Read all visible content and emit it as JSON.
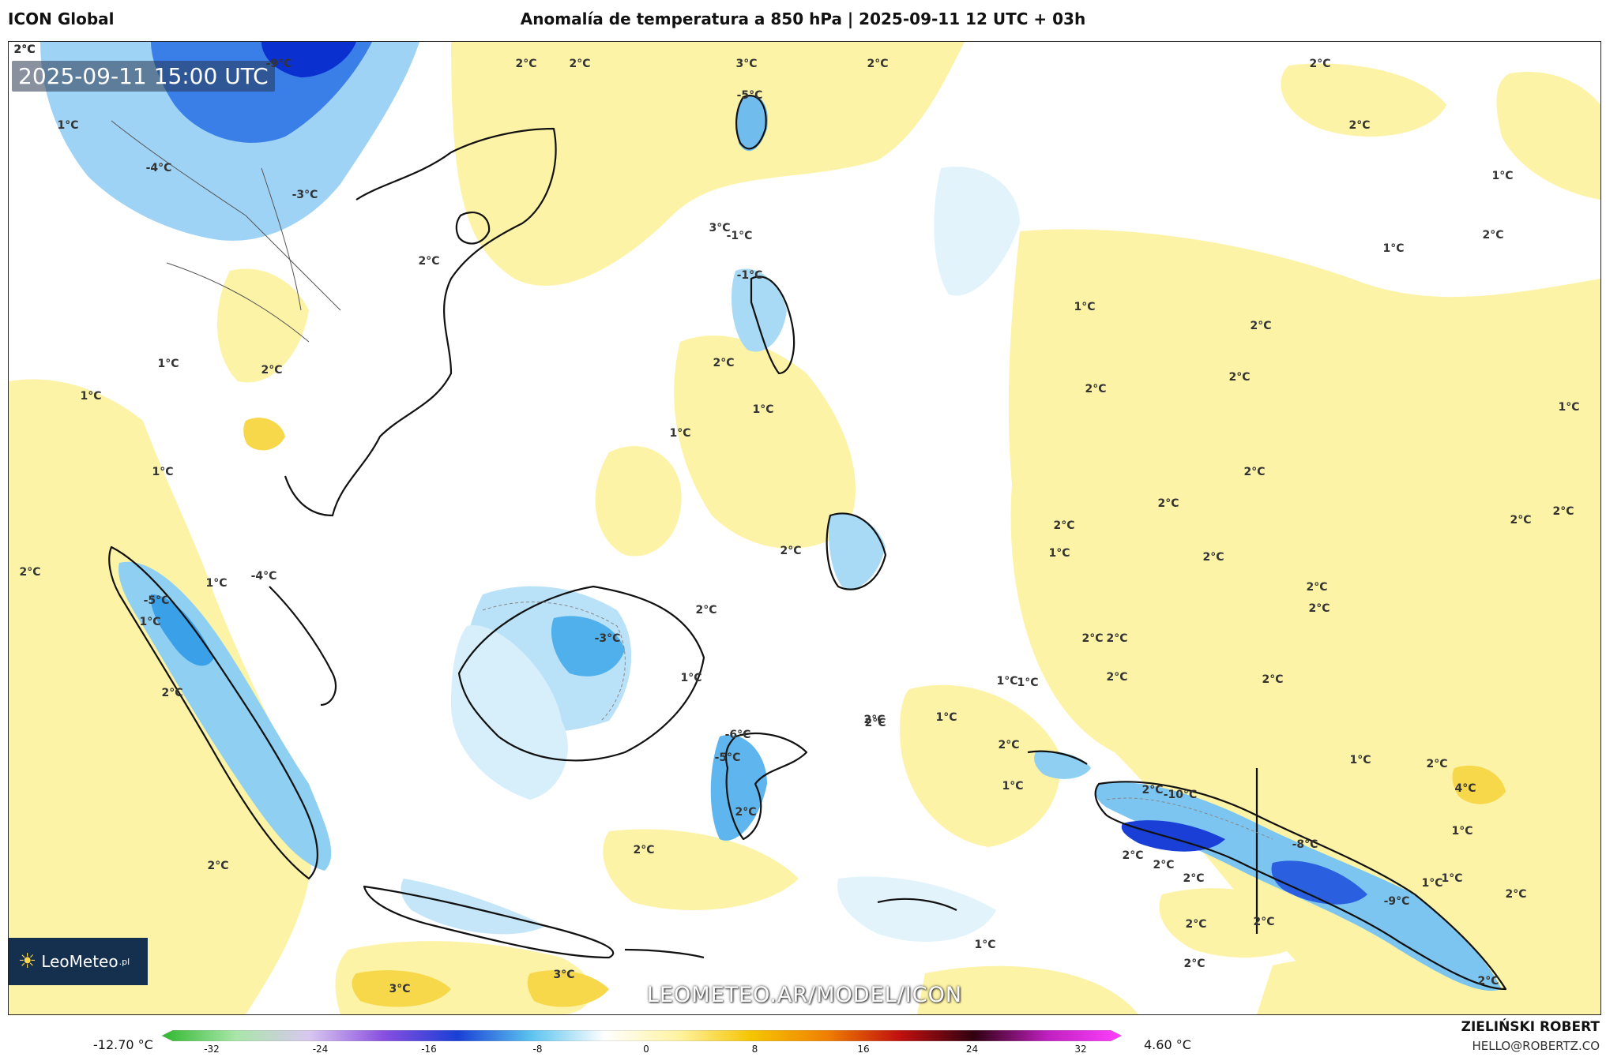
{
  "header": {
    "model": "ICON Global",
    "title": "Anomalía de temperatura a 850 hPa | 2025-09-11 12 UTC + 03h"
  },
  "map": {
    "valid_time": "2025-09-11 15:00 UTC",
    "watermark": "LEOMETEO.AR/MODEL/ICON",
    "logo_text": "LeoMeteo",
    "logo_suffix": ".pl",
    "labels": [
      {
        "text": "-9°C"
      },
      {
        "text": "2°C"
      },
      {
        "text": "2°C"
      },
      {
        "text": "3°C"
      },
      {
        "text": "-5°C"
      },
      {
        "text": "2°C"
      },
      {
        "text": "2°C"
      },
      {
        "text": "-1°C"
      },
      {
        "text": "-4°C"
      },
      {
        "text": "-3°C"
      },
      {
        "text": "2°C"
      },
      {
        "text": "1°C"
      },
      {
        "text": "1°C"
      },
      {
        "text": "1°C"
      },
      {
        "text": "2°C"
      },
      {
        "text": "2°C"
      },
      {
        "text": "3°C"
      },
      {
        "text": "2°C"
      },
      {
        "text": "-1°C"
      },
      {
        "text": "1°C"
      },
      {
        "text": "2°C"
      },
      {
        "text": "1°C"
      },
      {
        "text": "2°C"
      },
      {
        "text": "2°C"
      },
      {
        "text": "1°C"
      },
      {
        "text": "2°C"
      },
      {
        "text": "2°C"
      },
      {
        "text": "1°C"
      },
      {
        "text": "1°C"
      },
      {
        "text": "2°C"
      },
      {
        "text": "2°C"
      },
      {
        "text": "1°C"
      },
      {
        "text": "2°C"
      },
      {
        "text": "2°C"
      },
      {
        "text": "2°C"
      },
      {
        "text": "1°C"
      },
      {
        "text": "2°C"
      },
      {
        "text": "2°C"
      },
      {
        "text": "2°C"
      },
      {
        "text": "1°C"
      },
      {
        "text": "2°C"
      },
      {
        "text": "2°C"
      },
      {
        "text": "1°C"
      },
      {
        "text": "1°C"
      },
      {
        "text": "-4°C"
      },
      {
        "text": "-5°C"
      },
      {
        "text": "2°C"
      },
      {
        "text": "1°C"
      },
      {
        "text": "2°C"
      },
      {
        "text": "2°C"
      },
      {
        "text": "-3°C"
      },
      {
        "text": "2°C"
      },
      {
        "text": "1°C"
      },
      {
        "text": "1°C"
      },
      {
        "text": "2°C"
      },
      {
        "text": "2°C"
      },
      {
        "text": "1°C"
      },
      {
        "text": "2°C"
      },
      {
        "text": "2°C"
      },
      {
        "text": "2°C"
      },
      {
        "text": "2°C"
      },
      {
        "text": "2°C"
      },
      {
        "text": "-5°C"
      },
      {
        "text": "2°C"
      },
      {
        "text": "-6°C"
      },
      {
        "text": "1°C"
      },
      {
        "text": "2°C"
      },
      {
        "text": "2°C"
      },
      {
        "text": "2°C"
      },
      {
        "text": "2°C"
      },
      {
        "text": "1°C"
      },
      {
        "text": "2°C"
      },
      {
        "text": "1°C"
      },
      {
        "text": "2°C"
      },
      {
        "text": "-10°C"
      },
      {
        "text": "2°C"
      },
      {
        "text": "1°C"
      },
      {
        "text": "4°C"
      },
      {
        "text": "-8°C"
      },
      {
        "text": "2°C"
      },
      {
        "text": "1°C"
      },
      {
        "text": "-9°C"
      },
      {
        "text": "2°C"
      },
      {
        "text": "2°C"
      },
      {
        "text": "2°C"
      },
      {
        "text": "2°C"
      },
      {
        "text": "1°C"
      },
      {
        "text": "2°C"
      },
      {
        "text": "3°C"
      },
      {
        "text": "3°C"
      },
      {
        "text": "2°C"
      },
      {
        "text": "2°C"
      }
    ]
  },
  "legend": {
    "min_label": "-12.70 °C",
    "max_label": "4.60 °C",
    "ticks": [
      "-32",
      "-24",
      "-16",
      "-8",
      "0",
      "8",
      "16",
      "24",
      "32"
    ],
    "colors": [
      "#2fb82f",
      "#a8e6a8",
      "#d9c7f0",
      "#8a4fe0",
      "#1a3fd6",
      "#5bc3f0",
      "#ffffff",
      "#fff3a0",
      "#f5c400",
      "#f08000",
      "#c01010",
      "#300010",
      "#c020c0",
      "#ff40ff"
    ]
  },
  "footer": {
    "author": "ZIELIŃSKI ROBERT",
    "email": "HELLO@ROBERTZ.CO"
  }
}
